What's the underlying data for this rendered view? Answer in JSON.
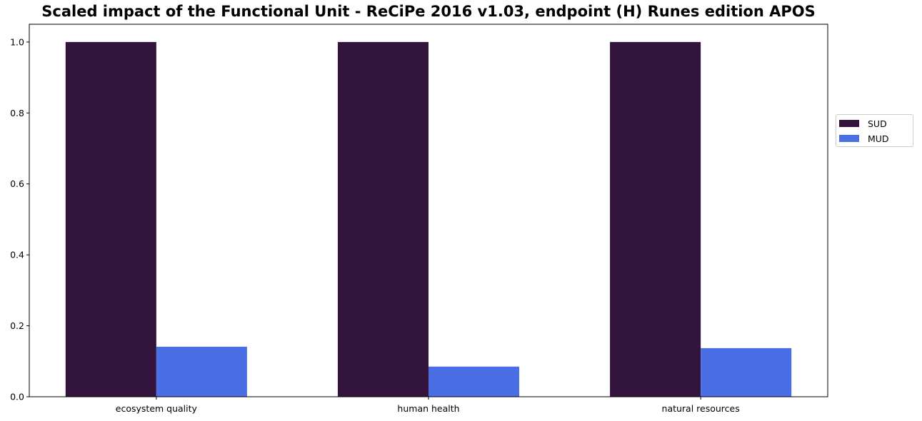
{
  "chart_data": {
    "type": "bar",
    "title": "Scaled impact of the Functional Unit - ReCiPe 2016 v1.03, endpoint (H) Runes edition APOS",
    "xlabel": "",
    "ylabel": "",
    "categories": [
      "ecosystem quality",
      "human health",
      "natural resources"
    ],
    "series": [
      {
        "name": "SUD",
        "color": "#32133b",
        "values": [
          1.0,
          1.0,
          1.0
        ]
      },
      {
        "name": "MUD",
        "color": "#4a6ee3",
        "values": [
          0.141,
          0.085,
          0.137
        ]
      }
    ],
    "ylim": [
      0,
      1.05
    ],
    "yticks": [
      0.0,
      0.2,
      0.4,
      0.6,
      0.8,
      1.0
    ],
    "ytick_labels": [
      "0.0",
      "0.2",
      "0.4",
      "0.6",
      "0.8",
      "1.0"
    ],
    "grid": false,
    "legend": "right"
  }
}
